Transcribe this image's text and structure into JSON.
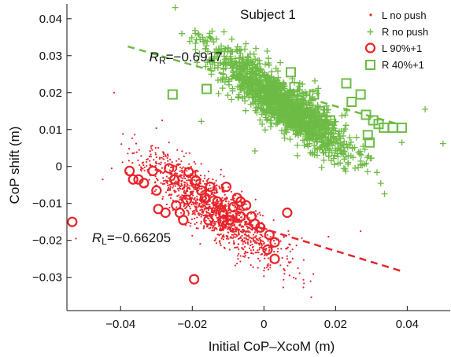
{
  "chart_data": {
    "type": "scatter",
    "title": "Subject 1",
    "xlabel": "Initial CoP–XcoM (m)",
    "ylabel": "CoP shift  (m)",
    "xlim": [
      -0.055,
      0.052
    ],
    "ylim": [
      -0.039,
      0.044
    ],
    "x_ticks": [
      "−0.04",
      "−0.02",
      "0",
      "0.02",
      "0.04"
    ],
    "x_tick_values": [
      -0.04,
      -0.02,
      0,
      0.02,
      0.04
    ],
    "y_ticks": [
      "0.04",
      "0.03",
      "0.02",
      "0.01",
      "0",
      "−0.01",
      "−0.02",
      "−0.03"
    ],
    "y_tick_values": [
      0.04,
      0.03,
      0.02,
      0.01,
      0,
      -0.01,
      -0.02,
      -0.03
    ],
    "grid": false,
    "legend_position": "top-right",
    "colors": {
      "red": "#e8242a",
      "green": "#6dbb45"
    },
    "annotations": {
      "r_right": {
        "symbol": "R",
        "sub": "R",
        "value": "=−0.6917",
        "x": -0.032,
        "y": 0.0285
      },
      "r_left": {
        "symbol": "R",
        "sub": "L",
        "value": "=−0.66205",
        "x": -0.048,
        "y": -0.0205
      }
    },
    "series": [
      {
        "name": "L no push",
        "marker": "dot",
        "color": "#e8242a",
        "cloud": {
          "count": 1500,
          "x_mean": -0.014,
          "x_sd": 0.009,
          "slope": -0.66,
          "intercept": -0.0205,
          "noise_sd": 0.0038,
          "seed": 11
        }
      },
      {
        "name": "R no push",
        "marker": "plus",
        "color": "#6dbb45",
        "cloud": {
          "count": 1400,
          "x_mean": 0.005,
          "x_sd": 0.0095,
          "slope": -0.69,
          "intercept": 0.0205,
          "noise_sd": 0.0035,
          "seed": 23
        }
      },
      {
        "name": "L 90%+1",
        "marker": "circle",
        "color": "#e8242a",
        "points": [
          [
            -0.0535,
            -0.015
          ],
          [
            -0.0375,
            -0.0012
          ],
          [
            -0.0365,
            -0.0035
          ],
          [
            -0.035,
            -0.0035
          ],
          [
            -0.0335,
            -0.0045
          ],
          [
            -0.031,
            -0.0012
          ],
          [
            -0.0295,
            -0.0115
          ],
          [
            -0.0265,
            -0.0005
          ],
          [
            -0.025,
            -0.0035
          ],
          [
            -0.0245,
            -0.0105
          ],
          [
            -0.0235,
            -0.0125
          ],
          [
            -0.0225,
            -0.0145
          ],
          [
            -0.021,
            -0.0015
          ],
          [
            -0.019,
            -0.0038
          ],
          [
            -0.0175,
            -0.0065
          ],
          [
            -0.0165,
            -0.0085
          ],
          [
            -0.015,
            -0.0055
          ],
          [
            -0.013,
            -0.0095
          ],
          [
            -0.0115,
            -0.0125
          ],
          [
            -0.0105,
            -0.0055
          ],
          [
            -0.0095,
            -0.0145
          ],
          [
            -0.0085,
            -0.011
          ],
          [
            -0.0075,
            -0.0085
          ],
          [
            -0.0065,
            -0.0135
          ],
          [
            -0.005,
            -0.0105
          ],
          [
            -0.0035,
            -0.0135
          ],
          [
            -0.0025,
            -0.0155
          ],
          [
            0.0015,
            -0.0185
          ],
          [
            0.003,
            -0.0205
          ],
          [
            0.0065,
            -0.0125
          ],
          [
            0.001,
            -0.0225
          ],
          [
            0.003,
            -0.025
          ],
          [
            -0.0275,
            -0.0125
          ],
          [
            -0.03,
            -0.0065
          ],
          [
            -0.0195,
            -0.0305
          ],
          [
            -0.0155,
            -0.0145
          ],
          [
            -0.0115,
            -0.015
          ],
          [
            -0.0215,
            -0.009
          ],
          [
            -0.0065,
            -0.0095
          ],
          [
            -0.001,
            -0.0165
          ]
        ]
      },
      {
        "name": "R 40%+1",
        "marker": "square",
        "color": "#6dbb45",
        "points": [
          [
            -0.0255,
            0.0195
          ],
          [
            -0.016,
            0.021
          ],
          [
            -0.0035,
            0.0245
          ],
          [
            -0.002,
            0.0215
          ],
          [
            0.0075,
            0.0255
          ],
          [
            0.0085,
            0.0215
          ],
          [
            0.012,
            0.0145
          ],
          [
            0.0155,
            0.015
          ],
          [
            0.0165,
            0.0115
          ],
          [
            0.0185,
            0.0125
          ],
          [
            0.0245,
            0.0175
          ],
          [
            0.027,
            0.0195
          ],
          [
            0.0285,
            0.014
          ],
          [
            0.029,
            0.0085
          ],
          [
            0.0295,
            0.0065
          ],
          [
            0.0305,
            0.0125
          ],
          [
            0.032,
            0.0115
          ],
          [
            0.0335,
            0.0105
          ],
          [
            0.036,
            0.0105
          ],
          [
            0.0385,
            0.0105
          ],
          [
            0.023,
            0.0225
          ],
          [
            0.014,
            0.0195
          ]
        ]
      }
    ],
    "fit_lines": [
      {
        "color": "#6dbb45",
        "points": [
          [
            -0.038,
            0.0325
          ],
          [
            0.038,
            0.0113
          ]
        ]
      },
      {
        "color": "#e8242a",
        "points": [
          [
            -0.008,
            -0.0145
          ],
          [
            0.039,
            -0.0285
          ]
        ]
      }
    ],
    "outliers": {
      "plus": [
        [
          -0.018,
          0.0305
        ],
        [
          0.05,
          0.0062
        ],
        [
          0.045,
          0.0155
        ],
        [
          -0.0025,
          0.0042
        ],
        [
          0.0215,
          0.0045
        ],
        [
          0.024,
          0.0058
        ],
        [
          -0.0175,
          0.0122
        ],
        [
          0.0385,
          0.0065
        ]
      ],
      "dot": [
        [
          -0.0425,
          -0.0005
        ],
        [
          -0.0525,
          -0.0195
        ],
        [
          -0.045,
          -0.0035
        ],
        [
          -0.038,
          0.0035
        ],
        [
          -0.0315,
          0.0055
        ],
        [
          0.0095,
          -0.0275
        ],
        [
          0.018,
          -0.019
        ],
        [
          0.027,
          -0.0175
        ]
      ]
    }
  }
}
